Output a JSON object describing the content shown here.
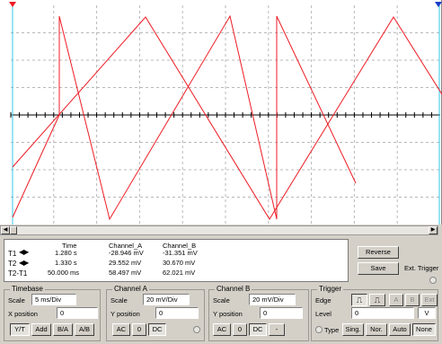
{
  "readout": {
    "rows": [
      {
        "label": "T1",
        "time": "1.280 s",
        "channel_a": "-28.946 mV",
        "channel_b": "-31.351 mV"
      },
      {
        "label": "T2",
        "time": "1.330 s",
        "channel_a": "29.552 mV",
        "channel_b": "30.670 mV"
      },
      {
        "label": "T2-T1",
        "time": "50.000 ms",
        "channel_a": "58.497 mV",
        "channel_b": "62.021 mV"
      }
    ],
    "headers": {
      "time": "Time",
      "channel_a": "Channel_A",
      "channel_b": "Channel_B"
    }
  },
  "buttons": {
    "reverse": "Reverse",
    "save": "Save",
    "ext_trigger": "Ext. Trigger"
  },
  "timebase": {
    "title": "Timebase",
    "scale_label": "Scale",
    "scale_value": "5 ms/Div",
    "xpos_label": "X position",
    "xpos_value": "0",
    "modes": [
      "Y/T",
      "Add",
      "B/A",
      "A/B"
    ]
  },
  "channel_a": {
    "title": "Channel A",
    "scale_label": "Scale",
    "scale_value": "20 mV/Div",
    "ypos_label": "Y position",
    "ypos_value": "0",
    "coupling": [
      "AC",
      "0",
      "DC"
    ]
  },
  "channel_b": {
    "title": "Channel B",
    "scale_label": "Scale",
    "scale_value": "20 mV/Div",
    "ypos_label": "Y position",
    "ypos_value": "0",
    "coupling": [
      "AC",
      "0",
      "DC",
      "-"
    ]
  },
  "trigger": {
    "title": "Trigger",
    "edge_label": "Edge",
    "level_label": "Level",
    "level_value": "0",
    "level_unit": "V",
    "type_label": "Type",
    "types": [
      "Sing.",
      "Nor.",
      "Auto",
      "None"
    ],
    "sources": [
      "A",
      "B",
      "Ext"
    ]
  },
  "colors": {
    "trace": "#ee1c24",
    "grid": "#b8b8b8",
    "cursor1": "#ee1c24",
    "cursor2": "#1a3cc8",
    "cursor_line": "#30c8e8"
  }
}
